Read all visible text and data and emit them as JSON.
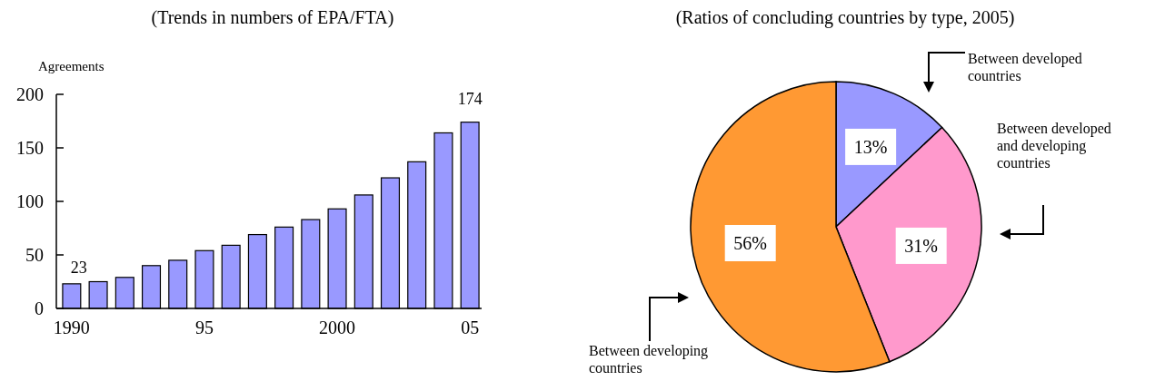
{
  "chart_data": [
    {
      "type": "bar",
      "title": "(Trends in numbers of EPA/FTA)",
      "ylabel": "Agreements",
      "categories": [
        "1990",
        null,
        null,
        null,
        null,
        "95",
        null,
        null,
        null,
        null,
        "2000",
        null,
        null,
        null,
        null,
        "05"
      ],
      "values": [
        23,
        25,
        29,
        40,
        45,
        54,
        59,
        69,
        76,
        83,
        93,
        106,
        122,
        137,
        164,
        174
      ],
      "value_labels": [
        "23",
        null,
        null,
        null,
        null,
        null,
        null,
        null,
        null,
        null,
        null,
        null,
        null,
        null,
        null,
        "174"
      ],
      "color": "#9999ff",
      "ylim": [
        0,
        200
      ],
      "yticks": [
        0,
        50,
        100,
        150,
        200
      ],
      "grid": false
    },
    {
      "type": "pie",
      "title": "(Ratios of concluding countries by type, 2005)",
      "categories": [
        "Between developed countries",
        "Between developed and developing countries",
        "Between developing countries"
      ],
      "values": [
        13,
        31,
        56
      ],
      "value_labels": [
        "13%",
        "31%",
        "56%"
      ],
      "colors": [
        "#9999ff",
        "#ff99cc",
        "#ff9933"
      ]
    }
  ]
}
